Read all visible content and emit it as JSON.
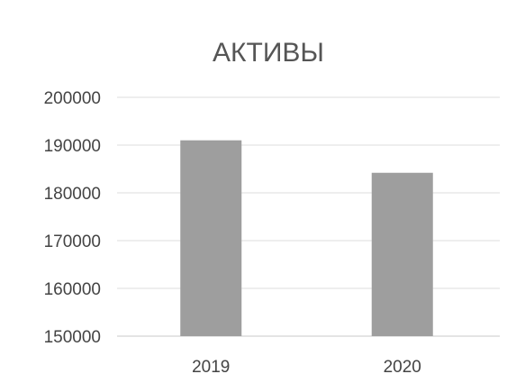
{
  "chart_data": {
    "type": "bar",
    "title": "АКТИВЫ",
    "categories": [
      "2019",
      "2020"
    ],
    "values": [
      191000,
      184200
    ],
    "ylim": [
      150000,
      200000
    ],
    "yticks": [
      150000,
      160000,
      170000,
      180000,
      190000,
      200000
    ],
    "grid": true,
    "legend": "none",
    "bar_color": "#9e9e9e"
  }
}
